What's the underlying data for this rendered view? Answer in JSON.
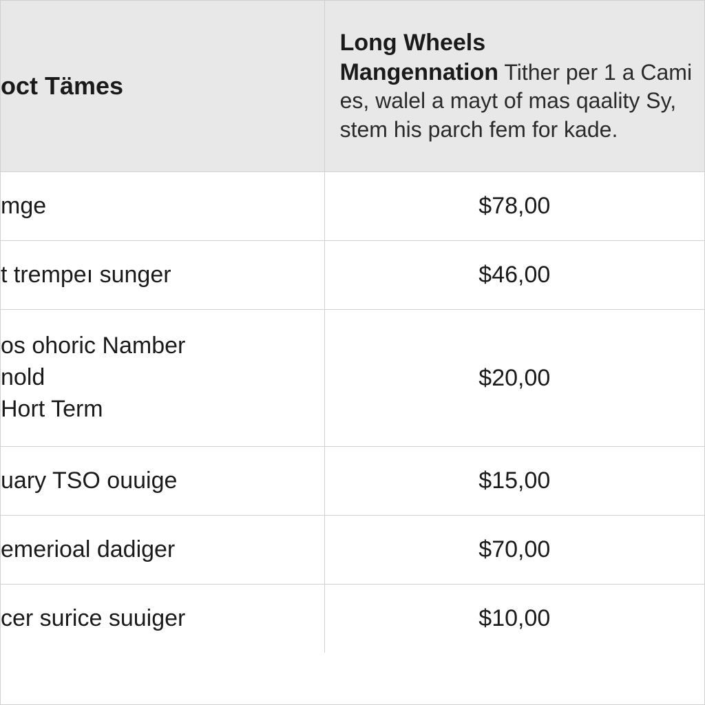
{
  "table": {
    "type": "table",
    "background_color": "#ffffff",
    "header_background_color": "#e8e8e8",
    "border_color": "#d0d0d0",
    "text_color": "#1a1a1a",
    "columns": {
      "col1": {
        "header": "oct Tämes",
        "width_pct": 46,
        "align": "left",
        "header_fontsize": 36,
        "header_fontweight": 700
      },
      "col2": {
        "header_bold_line1": "Long Wheels",
        "header_bold_line2": "Mangennation",
        "header_rest": " Tither per 1 a Cami es, walel a mayt of mas qaality Sy, stem his parch fem for kade.",
        "width_pct": 54,
        "align": "center",
        "header_fontsize_bold": 34,
        "header_fontsize_normal": 32
      }
    },
    "rows": [
      {
        "label": "mge",
        "value": "$78,00",
        "multiline": false
      },
      {
        "label": "t trempeı sunger",
        "value": "$46,00",
        "multiline": false
      },
      {
        "label": "os ohoric Namber\nnold\nHort Term",
        "value": "$20,00",
        "multiline": true
      },
      {
        "label": "uary TSO ouuige",
        "value": "$15,00",
        "multiline": false
      },
      {
        "label": "emerioal dadiger",
        "value": "$70,00",
        "multiline": false
      },
      {
        "label": "cer surice suuiger",
        "value": "$10,00",
        "multiline": false
      }
    ],
    "body_fontsize": 34
  }
}
